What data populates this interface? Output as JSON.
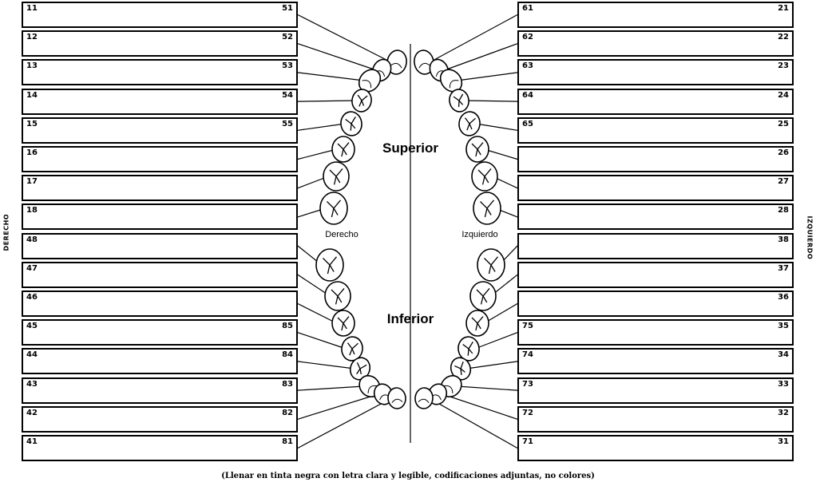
{
  "side_labels": {
    "right_side": "DERECHO",
    "left_side": "IZQUIERDO"
  },
  "arch_labels": {
    "superior": "Superior",
    "inferior": "Inferior",
    "derecho": "Derecho",
    "izquierdo": "Izquierdo"
  },
  "footnote": "(Llenar en tinta negra con letra clara y legible, codificaciones adjuntas, no colores)",
  "left_rows": [
    {
      "permanent": "11",
      "deciduous": "51"
    },
    {
      "permanent": "12",
      "deciduous": "52"
    },
    {
      "permanent": "13",
      "deciduous": "53"
    },
    {
      "permanent": "14",
      "deciduous": "54"
    },
    {
      "permanent": "15",
      "deciduous": "55"
    },
    {
      "permanent": "16",
      "deciduous": ""
    },
    {
      "permanent": "17",
      "deciduous": ""
    },
    {
      "permanent": "18",
      "deciduous": ""
    },
    {
      "permanent": "48",
      "deciduous": ""
    },
    {
      "permanent": "47",
      "deciduous": ""
    },
    {
      "permanent": "46",
      "deciduous": ""
    },
    {
      "permanent": "45",
      "deciduous": "85"
    },
    {
      "permanent": "44",
      "deciduous": "84"
    },
    {
      "permanent": "43",
      "deciduous": "83"
    },
    {
      "permanent": "42",
      "deciduous": "82"
    },
    {
      "permanent": "41",
      "deciduous": "81"
    }
  ],
  "right_rows": [
    {
      "deciduous": "61",
      "permanent": "21"
    },
    {
      "deciduous": "62",
      "permanent": "22"
    },
    {
      "deciduous": "63",
      "permanent": "23"
    },
    {
      "deciduous": "64",
      "permanent": "24"
    },
    {
      "deciduous": "65",
      "permanent": "25"
    },
    {
      "deciduous": "",
      "permanent": "26"
    },
    {
      "deciduous": "",
      "permanent": "27"
    },
    {
      "deciduous": "",
      "permanent": "28"
    },
    {
      "deciduous": "",
      "permanent": "38"
    },
    {
      "deciduous": "",
      "permanent": "37"
    },
    {
      "deciduous": "",
      "permanent": "36"
    },
    {
      "deciduous": "75",
      "permanent": "35"
    },
    {
      "deciduous": "74",
      "permanent": "34"
    },
    {
      "deciduous": "73",
      "permanent": "33"
    },
    {
      "deciduous": "72",
      "permanent": "32"
    },
    {
      "deciduous": "71",
      "permanent": "31"
    }
  ]
}
